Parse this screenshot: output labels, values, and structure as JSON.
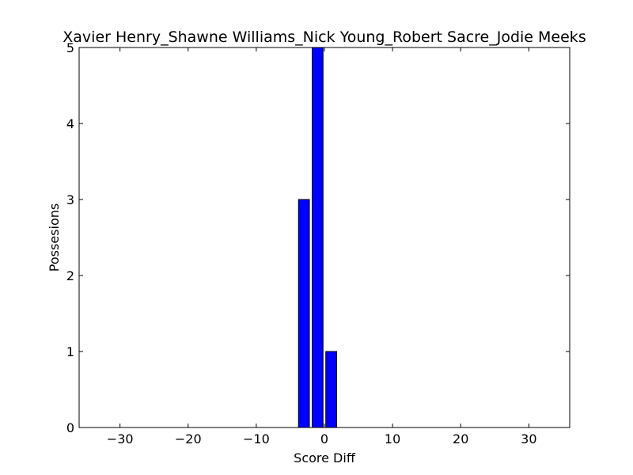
{
  "chart_data": {
    "type": "bar",
    "title": "Xavier Henry_Shawne Williams_Nick Young_Robert Sacre_Jodie Meeks",
    "xlabel": "Score Diff",
    "ylabel": "Possesions",
    "xlim": [
      -36,
      36
    ],
    "ylim": [
      0,
      5
    ],
    "xticks": [
      -30,
      -20,
      -10,
      0,
      10,
      20,
      30
    ],
    "xtick_labels": [
      "−30",
      "−20",
      "−10",
      "0",
      "10",
      "20",
      "30"
    ],
    "yticks": [
      0,
      1,
      2,
      3,
      4,
      5
    ],
    "ytick_labels": [
      "0",
      "1",
      "2",
      "3",
      "4",
      "5"
    ],
    "bar_width": 1.6,
    "x": [
      -3,
      -1,
      1
    ],
    "values": [
      3,
      5,
      1
    ],
    "grid": false,
    "colors": {
      "bar_fill": "#0000ff",
      "bar_edge": "#000000",
      "axes": "#000000",
      "background": "#ffffff"
    }
  }
}
